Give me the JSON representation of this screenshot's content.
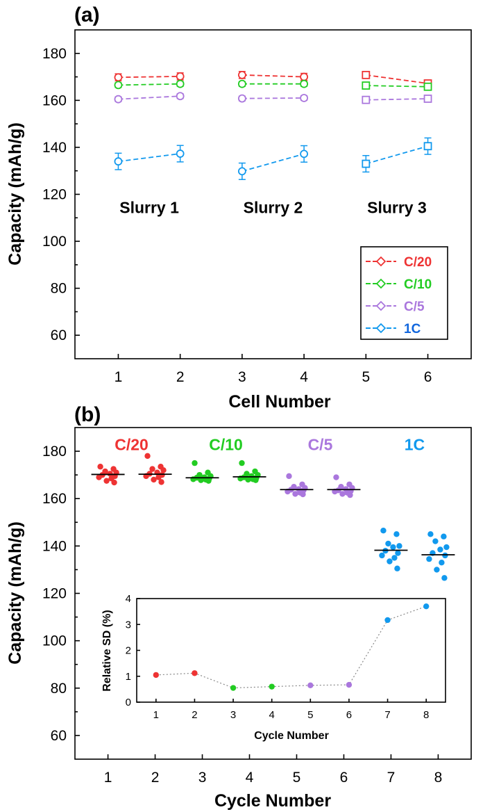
{
  "colors": {
    "C/20": "#ee3333",
    "C/10": "#22cc22",
    "C/5": "#aa77dd",
    "1C": "#1199ee",
    "legend_1C_text": "#1166dd"
  },
  "chart_data": [
    {
      "panel": "(a)",
      "type": "line",
      "xlabel": "Cell Number",
      "ylabel": "Capacity (mAh/g)",
      "xlim": [
        0.3,
        6.7
      ],
      "ylim": [
        50,
        190
      ],
      "xticks": [
        1,
        2,
        3,
        4,
        5,
        6
      ],
      "yticks": [
        60,
        80,
        100,
        120,
        140,
        160,
        180
      ],
      "annotations": [
        "Slurry 1",
        "Slurry 2",
        "Slurry 3"
      ],
      "annotation_x": [
        1.5,
        3.5,
        5.5
      ],
      "annotation_y": 112,
      "legend_position": "bottom-right",
      "marker_shapes": [
        "circle",
        "circle",
        "square"
      ],
      "series": [
        {
          "name": "C/20",
          "values": [
            [
              1,
              169.8,
              1.5
            ],
            [
              2,
              170.2,
              1.5
            ],
            [
              3,
              170.8,
              1.5
            ],
            [
              4,
              170.0,
              1.5
            ],
            [
              5,
              170.8,
              1.2
            ],
            [
              6,
              167.2,
              1.2
            ]
          ]
        },
        {
          "name": "C/10",
          "values": [
            [
              1,
              166.5,
              1.0
            ],
            [
              2,
              167.0,
              1.0
            ],
            [
              3,
              167.0,
              1.0
            ],
            [
              4,
              167.0,
              1.0
            ],
            [
              5,
              166.3,
              1.0
            ],
            [
              6,
              165.8,
              1.0
            ]
          ]
        },
        {
          "name": "C/5",
          "values": [
            [
              1,
              160.5,
              1.0
            ],
            [
              2,
              161.8,
              1.0
            ],
            [
              3,
              160.8,
              1.0
            ],
            [
              4,
              161.0,
              1.0
            ],
            [
              5,
              160.2,
              1.0
            ],
            [
              6,
              160.7,
              1.0
            ]
          ]
        },
        {
          "name": "1C",
          "values": [
            [
              1,
              134.0,
              3.5
            ],
            [
              2,
              137.3,
              3.5
            ],
            [
              3,
              129.8,
              3.5
            ],
            [
              4,
              137.2,
              3.5
            ],
            [
              5,
              133.0,
              3.5
            ],
            [
              6,
              140.5,
              3.5
            ]
          ]
        }
      ]
    },
    {
      "panel": "(b)",
      "type": "scatter",
      "xlabel": "Cycle Number",
      "ylabel": "Capacity (mAh/g)",
      "xlim": [
        0.3,
        8.7
      ],
      "ylim": [
        50,
        190
      ],
      "xticks": [
        1,
        2,
        3,
        4,
        5,
        6,
        7,
        8
      ],
      "yticks": [
        60,
        80,
        100,
        120,
        140,
        160,
        180
      ],
      "group_labels": [
        {
          "text": "C/20",
          "x": 1.5,
          "color_key": "C/20"
        },
        {
          "text": "C/10",
          "x": 3.5,
          "color_key": "C/10"
        },
        {
          "text": "C/5",
          "x": 5.5,
          "color_key": "C/5"
        },
        {
          "text": "1C",
          "x": 7.5,
          "color_key": "1C"
        }
      ],
      "group_label_y": 180.5,
      "cycles": [
        {
          "x": 1,
          "color_key": "C/20",
          "mean": 170.2,
          "points": [
            173.5,
            172.5,
            171.5,
            171.0,
            170.5,
            170.0,
            169.5,
            169.0,
            168.5,
            167.5,
            166.8
          ]
        },
        {
          "x": 2,
          "color_key": "C/20",
          "mean": 170.3,
          "points": [
            178.0,
            173.5,
            172.5,
            172.0,
            171.0,
            170.5,
            170.0,
            169.5,
            169.0,
            168.0,
            167.0
          ]
        },
        {
          "x": 3,
          "color_key": "C/10",
          "mean": 168.8,
          "points": [
            175.0,
            171.0,
            170.0,
            169.5,
            169.0,
            168.8,
            168.5,
            168.2,
            168.0,
            167.8,
            167.5
          ]
        },
        {
          "x": 4,
          "color_key": "C/10",
          "mean": 169.2,
          "points": [
            175.0,
            171.5,
            170.5,
            170.0,
            169.5,
            169.0,
            168.8,
            168.5,
            168.2,
            168.0,
            167.8
          ]
        },
        {
          "x": 5,
          "color_key": "C/5",
          "mean": 163.8,
          "points": [
            169.5,
            166.0,
            165.0,
            164.5,
            164.0,
            163.8,
            163.5,
            163.0,
            162.5,
            162.0,
            161.8
          ]
        },
        {
          "x": 6,
          "color_key": "C/5",
          "mean": 163.8,
          "points": [
            169.0,
            166.0,
            165.0,
            164.5,
            164.0,
            163.5,
            163.2,
            163.0,
            162.5,
            162.0,
            161.5
          ]
        },
        {
          "x": 7,
          "color_key": "1C",
          "mean": 138.2,
          "points": [
            146.5,
            145.0,
            141.0,
            140.0,
            139.5,
            138.0,
            137.0,
            136.0,
            135.0,
            133.5,
            130.5
          ]
        },
        {
          "x": 8,
          "color_key": "1C",
          "mean": 136.3,
          "points": [
            145.0,
            144.0,
            142.0,
            139.5,
            138.5,
            137.0,
            136.0,
            134.5,
            133.0,
            130.0,
            126.5
          ]
        }
      ],
      "inset": {
        "type": "line",
        "xlabel": "Cycle Number",
        "ylabel": "Relative SD (%)",
        "xlim": [
          0.5,
          8.5
        ],
        "ylim": [
          0,
          4
        ],
        "xticks": [
          1,
          2,
          3,
          4,
          5,
          6,
          7,
          8
        ],
        "yticks": [
          0,
          1,
          2,
          3,
          4
        ],
        "x": [
          1,
          2,
          3,
          4,
          5,
          6,
          7,
          8
        ],
        "values": [
          1.05,
          1.12,
          0.55,
          0.6,
          0.65,
          0.67,
          3.17,
          3.7
        ],
        "color_keys": [
          "C/20",
          "C/20",
          "C/10",
          "C/10",
          "C/5",
          "C/5",
          "1C",
          "1C"
        ]
      }
    }
  ]
}
